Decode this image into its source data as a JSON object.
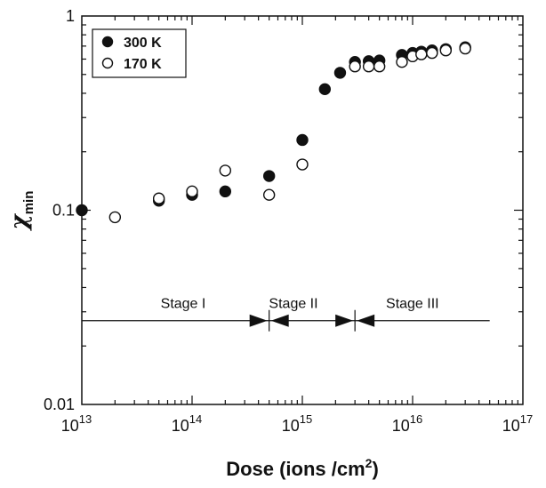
{
  "chart_data": {
    "type": "scatter",
    "x_scale": "log",
    "y_scale": "log",
    "xlim": [
      10000000000000.0,
      1e+17
    ],
    "ylim": [
      0.01,
      1
    ],
    "x_ticks": [
      {
        "value": 10000000000000.0,
        "mantissa": "10",
        "exp": "13"
      },
      {
        "value": 100000000000000.0,
        "mantissa": "10",
        "exp": "14"
      },
      {
        "value": 1000000000000000.0,
        "mantissa": "10",
        "exp": "15"
      },
      {
        "value": 1e+16,
        "mantissa": "10",
        "exp": "16"
      },
      {
        "value": 1e+17,
        "mantissa": "10",
        "exp": "17"
      }
    ],
    "y_ticks": [
      {
        "value": 1,
        "label": "1"
      },
      {
        "value": 0.1,
        "label": "0.1"
      },
      {
        "value": 0.01,
        "label": "0.01"
      }
    ],
    "xlabel": {
      "main": "Dose (ions /cm",
      "sup": "2",
      "tail": ")"
    },
    "ylabel": {
      "main": "χ",
      "sub": "min"
    },
    "legend": {
      "placement": "top-left",
      "entries": [
        {
          "label": "300 K",
          "marker": "filled"
        },
        {
          "label": "170 K",
          "marker": "open"
        }
      ]
    },
    "series": [
      {
        "name": "300 K",
        "marker": "filled",
        "points": [
          [
            10000000000000.0,
            0.1
          ],
          [
            50000000000000.0,
            0.112
          ],
          [
            100000000000000.0,
            0.12
          ],
          [
            200000000000000.0,
            0.125
          ],
          [
            500000000000000.0,
            0.15
          ],
          [
            1000000000000000.0,
            0.23
          ],
          [
            1600000000000000.0,
            0.42
          ],
          [
            2200000000000000.0,
            0.51
          ],
          [
            3000000000000000.0,
            0.58
          ],
          [
            4000000000000000.0,
            0.585
          ],
          [
            5000000000000000.0,
            0.59
          ],
          [
            8000000000000000.0,
            0.63
          ],
          [
            1e+16,
            0.645
          ],
          [
            1.2e+16,
            0.655
          ],
          [
            1.5e+16,
            0.665
          ],
          [
            2e+16,
            0.675
          ],
          [
            3e+16,
            0.69
          ]
        ]
      },
      {
        "name": "170 K",
        "marker": "open",
        "points": [
          [
            20000000000000.0,
            0.092
          ],
          [
            50000000000000.0,
            0.115
          ],
          [
            100000000000000.0,
            0.125
          ],
          [
            200000000000000.0,
            0.16
          ],
          [
            500000000000000.0,
            0.12
          ],
          [
            1000000000000000.0,
            0.172
          ],
          [
            3000000000000000.0,
            0.55
          ],
          [
            4000000000000000.0,
            0.55
          ],
          [
            5000000000000000.0,
            0.55
          ],
          [
            8000000000000000.0,
            0.58
          ],
          [
            1e+16,
            0.62
          ],
          [
            1.2e+16,
            0.635
          ],
          [
            1.5e+16,
            0.645
          ],
          [
            2e+16,
            0.665
          ],
          [
            3e+16,
            0.68
          ]
        ]
      }
    ],
    "stages": {
      "labels": [
        {
          "text": "Stage I",
          "x": 100000000000000.0
        },
        {
          "text": "Stage II",
          "x": 1000000000000000.0
        },
        {
          "text": "Stage III",
          "x": 1.2e+16
        }
      ],
      "arrow_y": 0.027,
      "boundaries": [
        500000000000000.0,
        3000000000000000.0
      ],
      "range": [
        10000000000000.0,
        5e+16
      ]
    }
  }
}
